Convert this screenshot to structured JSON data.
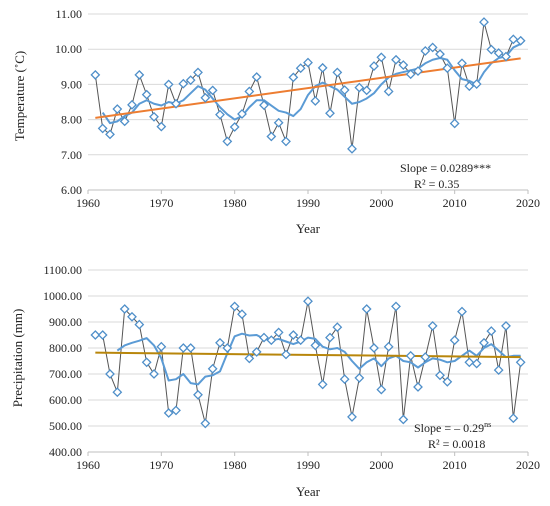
{
  "chart_data": [
    {
      "type": "line",
      "xlabel": "Year",
      "ylabel": "Temperature (˚C)",
      "xlim": [
        1960,
        2020
      ],
      "ylim": [
        6.0,
        11.0
      ],
      "x_ticks": [
        "1960",
        "1970",
        "1980",
        "1990",
        "2000",
        "2010",
        "2020"
      ],
      "y_ticks": [
        "6.00",
        "7.00",
        "8.00",
        "9.00",
        "10.00",
        "11.00"
      ],
      "annotations": {
        "slope_prefix": "Slope = ",
        "slope_value": "0.0289",
        "slope_sig": "***",
        "r2": "R² = 0.35"
      },
      "colors": {
        "observed": "#555555",
        "marker": "#4f8fc9",
        "smoothed": "#5b9bd5",
        "trend": "#ed7d31"
      },
      "trend": {
        "x": [
          1961,
          2019
        ],
        "y": [
          8.05,
          9.74
        ]
      },
      "series": [
        {
          "x": [
            1961,
            1962,
            1963,
            1964,
            1965,
            1966,
            1967,
            1968,
            1969,
            1970,
            1971,
            1972,
            1973,
            1974,
            1975,
            1976,
            1977,
            1978,
            1979,
            1980,
            1981,
            1982,
            1983,
            1984,
            1985,
            1986,
            1987,
            1988,
            1989,
            1990,
            1991,
            1992,
            1993,
            1994,
            1995,
            1996,
            1997,
            1998,
            1999,
            2000,
            2001,
            2002,
            2003,
            2004,
            2005,
            2006,
            2007,
            2008,
            2009,
            2010,
            2011,
            2012,
            2013,
            2014,
            2015,
            2016,
            2017,
            2018,
            2019
          ],
          "y": [
            9.27,
            7.75,
            7.58,
            8.3,
            7.95,
            8.42,
            9.27,
            8.71,
            8.08,
            7.8,
            9.0,
            8.45,
            9.02,
            9.12,
            9.34,
            8.62,
            8.83,
            8.14,
            7.38,
            7.79,
            8.16,
            8.8,
            9.21,
            8.41,
            7.52,
            7.91,
            7.38,
            9.2,
            9.46,
            9.62,
            8.53,
            9.47,
            8.18,
            9.34,
            8.84,
            7.17,
            8.91,
            8.83,
            9.52,
            9.77,
            8.8,
            9.7,
            9.55,
            9.29,
            9.38,
            9.95,
            10.05,
            9.86,
            9.46,
            7.89,
            9.6,
            8.95,
            9.01,
            10.77,
            9.99,
            9.89,
            9.79,
            10.28,
            10.24
          ]
        },
        {
          "x": [
            1962,
            1963,
            1964,
            1965,
            1966,
            1967,
            1968,
            1969,
            1970,
            1971,
            1972,
            1973,
            1974,
            1975,
            1976,
            1977,
            1978,
            1979,
            1980,
            1981,
            1982,
            1983,
            1984,
            1985,
            1986,
            1987,
            1988,
            1989,
            1990,
            1991,
            1992,
            1993,
            1994,
            1995,
            1996,
            1997,
            1998,
            1999,
            2000,
            2001,
            2002,
            2003,
            2004,
            2005,
            2006,
            2007,
            2008,
            2009,
            2010,
            2011,
            2012,
            2013,
            2014,
            2015,
            2016,
            2017,
            2018,
            2019
          ],
          "y": [
            8.2,
            7.9,
            7.95,
            8.1,
            8.2,
            8.45,
            8.55,
            8.45,
            8.4,
            8.5,
            8.45,
            8.55,
            8.75,
            8.95,
            8.85,
            8.6,
            8.35,
            8.15,
            8.0,
            8.1,
            8.35,
            8.55,
            8.55,
            8.4,
            8.25,
            8.2,
            8.1,
            8.3,
            8.7,
            8.95,
            9.05,
            8.95,
            8.85,
            8.65,
            8.45,
            8.5,
            8.6,
            8.75,
            9.0,
            9.2,
            9.3,
            9.35,
            9.4,
            9.45,
            9.6,
            9.7,
            9.75,
            9.7,
            9.4,
            9.15,
            9.1,
            9.0,
            9.35,
            9.6,
            9.75,
            9.8,
            10.05,
            10.15
          ]
        }
      ]
    },
    {
      "type": "line",
      "xlabel": "Year",
      "ylabel": "Precipitation (mm)",
      "xlim": [
        1960,
        2020
      ],
      "ylim": [
        400,
        1100
      ],
      "x_ticks": [
        "1960",
        "1970",
        "1980",
        "1990",
        "2000",
        "2010",
        "2020"
      ],
      "y_ticks": [
        "400.00",
        "500.00",
        "600.00",
        "700.00",
        "800.00",
        "900.00",
        "1000.00",
        "1100.00"
      ],
      "annotations": {
        "slope_prefix": "Slope = ",
        "slope_value": "– 0.29",
        "slope_sig": "ns",
        "r2": "R² = 0.0018"
      },
      "colors": {
        "observed": "#555555",
        "marker": "#4f8fc9",
        "smoothed": "#5b9bd5",
        "trend": "#b8860b"
      },
      "trend": {
        "x": [
          1961,
          2019
        ],
        "y": [
          782,
          765
        ]
      },
      "series": [
        {
          "x": [
            1961,
            1962,
            1963,
            1964,
            1965,
            1966,
            1967,
            1968,
            1969,
            1970,
            1971,
            1972,
            1973,
            1974,
            1975,
            1976,
            1977,
            1978,
            1979,
            1980,
            1981,
            1982,
            1983,
            1984,
            1985,
            1986,
            1987,
            1988,
            1989,
            1990,
            1991,
            1992,
            1993,
            1994,
            1995,
            1996,
            1997,
            1998,
            1999,
            2000,
            2001,
            2002,
            2003,
            2004,
            2005,
            2006,
            2007,
            2008,
            2009,
            2010,
            2011,
            2012,
            2013,
            2014,
            2015,
            2016,
            2017,
            2018,
            2019
          ],
          "y": [
            850,
            850,
            700,
            630,
            950,
            920,
            890,
            745,
            700,
            805,
            550,
            560,
            800,
            800,
            620,
            510,
            720,
            820,
            800,
            960,
            930,
            760,
            785,
            840,
            830,
            860,
            775,
            850,
            830,
            980,
            810,
            660,
            840,
            880,
            680,
            535,
            685,
            950,
            800,
            640,
            805,
            960,
            525,
            770,
            650,
            765,
            885,
            695,
            670,
            830,
            940,
            745,
            740,
            820,
            865,
            715,
            885,
            530,
            745
          ]
        },
        {
          "x": [
            1964,
            1965,
            1966,
            1967,
            1968,
            1969,
            1970,
            1971,
            1972,
            1973,
            1974,
            1975,
            1976,
            1977,
            1978,
            1979,
            1980,
            1981,
            1982,
            1983,
            1984,
            1985,
            1986,
            1987,
            1988,
            1989,
            1990,
            1991,
            1992,
            1993,
            1994,
            1995,
            1996,
            1997,
            1998,
            1999,
            2000,
            2001,
            2002,
            2003,
            2004,
            2005,
            2006,
            2007,
            2008,
            2009,
            2010,
            2011,
            2012,
            2013,
            2014,
            2015,
            2016,
            2017,
            2018,
            2019
          ],
          "y": [
            790,
            810,
            820,
            828,
            838,
            810,
            760,
            675,
            680,
            700,
            665,
            660,
            690,
            695,
            710,
            780,
            845,
            855,
            848,
            850,
            835,
            830,
            835,
            825,
            815,
            825,
            840,
            835,
            805,
            795,
            800,
            785,
            750,
            720,
            745,
            760,
            730,
            760,
            770,
            750,
            745,
            725,
            745,
            760,
            755,
            745,
            750,
            770,
            790,
            770,
            800,
            815,
            790,
            765,
            770,
            770
          ]
        }
      ]
    }
  ]
}
